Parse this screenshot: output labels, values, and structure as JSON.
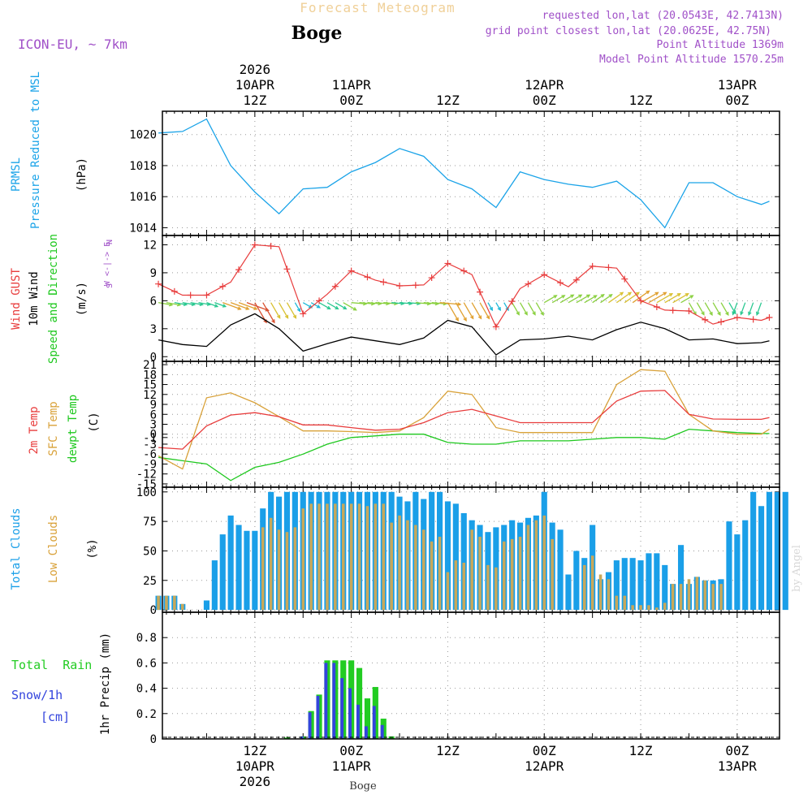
{
  "header": {
    "product": "Forecast Meteogram",
    "station": "Boge",
    "model": "ICON-EU, ~ 7km",
    "requested": "requested lon,lat (20.0543E, 42.7413N)",
    "gridpoint": "grid point closest lon,lat (20.0625E, 42.75N)",
    "altitude": "Point Altitude 1369m",
    "model_altitude": "Model Point Altitude 1570.25m",
    "credit": "by Angel",
    "footer_station": "Boge"
  },
  "colors": {
    "prmsl": "#1aa3e8",
    "gust": "#e83c3c",
    "wind": "#000000",
    "temp2m": "#e83c3c",
    "sfc": "#d9a23a",
    "dewpt": "#1ec81e",
    "total_clouds": "#1a9fe8",
    "low_clouds": "#c8a85a",
    "rain": "#22cc22",
    "snow": "#3344dd",
    "purple": "#a050c8"
  },
  "chart_data": [
    {
      "type": "line",
      "id": "prmsl",
      "ylabel_lines": [
        "PRMSL",
        "Pressure Reduced to MSL"
      ],
      "unit": "(hPa)",
      "ylim": [
        1013.5,
        1021.5
      ],
      "yticks": [
        1014,
        1016,
        1018,
        1020
      ],
      "yticklabels": [
        "1014",
        "1016",
        "1018",
        "1020"
      ],
      "x_hours": [
        0,
        3,
        6,
        9,
        12,
        15,
        18,
        21,
        24,
        27,
        30,
        33,
        36,
        39,
        42,
        45,
        48,
        51,
        54,
        57,
        60,
        63,
        66,
        69,
        72,
        75,
        76
      ],
      "series": [
        {
          "name": "PRMSL",
          "values": [
            1020.1,
            1020.2,
            1021.0,
            1018.0,
            1016.3,
            1014.9,
            1016.5,
            1016.6,
            1017.6,
            1018.2,
            1019.1,
            1018.6,
            1017.1,
            1016.5,
            1015.3,
            1017.6,
            1017.1,
            1016.8,
            1016.6,
            1017.0,
            1015.8,
            1014.0,
            1016.9,
            1016.9,
            1016.0,
            1015.5,
            1015.7
          ]
        }
      ]
    },
    {
      "type": "line",
      "id": "wind",
      "ylabel_lines": [
        "Wind GUST",
        "10m Wind",
        "Speed and Direction"
      ],
      "unit": "(m/s)",
      "compass": [
        "N",
        "W <-|-> E",
        "S"
      ],
      "ylim": [
        -0.5,
        13
      ],
      "yticks": [
        0,
        3,
        6,
        9,
        12
      ],
      "yticklabels": [
        "0",
        "3",
        "6",
        "9",
        "12"
      ],
      "x_hours": [
        0,
        3,
        6,
        9,
        12,
        15,
        18,
        21,
        24,
        27,
        30,
        33,
        36,
        39,
        42,
        45,
        48,
        51,
        54,
        57,
        60,
        63,
        66,
        69,
        72,
        75,
        76
      ],
      "series": [
        {
          "name": "Wind GUST",
          "values": [
            7.8,
            6.6,
            6.6,
            8.0,
            12.0,
            11.8,
            4.6,
            6.7,
            9.2,
            8.2,
            7.6,
            7.7,
            10.0,
            8.8,
            3.2,
            7.3,
            8.8,
            7.5,
            9.7,
            9.5,
            6.0,
            5.0,
            4.9,
            3.5,
            4.2,
            3.9,
            4.2
          ]
        },
        {
          "name": "10m Wind",
          "values": [
            1.8,
            1.3,
            1.1,
            3.4,
            4.6,
            3.0,
            0.6,
            1.4,
            2.1,
            1.7,
            1.3,
            2.0,
            3.9,
            3.2,
            0.2,
            1.8,
            1.9,
            2.2,
            1.8,
            2.9,
            3.7,
            3.0,
            1.8,
            1.9,
            1.4,
            1.5,
            1.7
          ]
        }
      ],
      "wind_barbs": {
        "base": 5.8,
        "count": 76,
        "direction_deg_by_6h": [
          100,
          110,
          150,
          120,
          95,
          95,
          150,
          150,
          60,
          55,
          60,
          150,
          200,
          60,
          60
        ]
      }
    },
    {
      "type": "line",
      "id": "temperature",
      "ylabel_lines": [
        "2m Temp",
        "SFC Temp",
        "dewpt Temp"
      ],
      "unit": "(C)",
      "ylim": [
        -16,
        22
      ],
      "yticks": [
        -15,
        -12,
        -9,
        -6,
        -3,
        -1,
        0,
        3,
        6,
        9,
        12,
        15,
        18,
        21
      ],
      "yticklabels": [
        "-15",
        "-12",
        "-9",
        "-6",
        "-3",
        "-1",
        "0",
        "3",
        "6",
        "9",
        "12",
        "15",
        "18",
        "21"
      ],
      "x_hours": [
        0,
        3,
        6,
        9,
        12,
        15,
        18,
        21,
        24,
        27,
        30,
        33,
        36,
        39,
        42,
        45,
        48,
        51,
        54,
        57,
        60,
        63,
        66,
        69,
        72,
        75,
        76
      ],
      "series": [
        {
          "name": "2m Temp",
          "values": [
            -4.0,
            -4.5,
            2.5,
            5.8,
            6.5,
            5.3,
            2.8,
            2.8,
            2.0,
            1.2,
            1.5,
            3.5,
            6.5,
            7.5,
            5.5,
            3.5,
            3.5,
            3.5,
            3.5,
            10.0,
            13.0,
            13.2,
            6.0,
            4.6,
            4.5,
            4.5,
            5.0
          ]
        },
        {
          "name": "SFC Temp",
          "values": [
            -6.5,
            -10.5,
            11.0,
            12.5,
            9.5,
            5.3,
            1.0,
            1.0,
            0.8,
            0.5,
            1.0,
            5.0,
            13.0,
            12.0,
            2.0,
            0.5,
            0.5,
            0.5,
            0.5,
            15.0,
            19.5,
            19.0,
            6.0,
            1.0,
            0.0,
            0.0,
            1.5
          ]
        },
        {
          "name": "dewpt Temp",
          "values": [
            -7.0,
            -8.0,
            -9.0,
            -14.0,
            -10.0,
            -8.5,
            -6.0,
            -3.0,
            -1.0,
            -0.5,
            0.0,
            0.0,
            -2.5,
            -3.0,
            -3.0,
            -2.0,
            -2.0,
            -2.0,
            -1.5,
            -1.0,
            -1.0,
            -1.5,
            1.5,
            1.0,
            0.5,
            0.2,
            0.2
          ]
        }
      ]
    },
    {
      "type": "bar",
      "id": "clouds",
      "ylabel_lines": [
        "Total Clouds",
        "Low Clouds"
      ],
      "unit": "(%)",
      "ylim": [
        -2,
        104
      ],
      "yticks": [
        0,
        25,
        50,
        75,
        100
      ],
      "yticklabels": [
        "0",
        "25",
        "50",
        "75",
        "100"
      ],
      "series": [
        {
          "name": "Total Clouds",
          "values": [
            12,
            12,
            12,
            5,
            0,
            0,
            8,
            42,
            64,
            80,
            72,
            67,
            67,
            86,
            100,
            96,
            100,
            100,
            100,
            100,
            100,
            100,
            100,
            100,
            100,
            100,
            100,
            100,
            100,
            100,
            96,
            92,
            100,
            94,
            100,
            100,
            92,
            90,
            82,
            76,
            72,
            66,
            70,
            72,
            76,
            74,
            78,
            80,
            100,
            74,
            68,
            30,
            50,
            44,
            72,
            26,
            32,
            42,
            44,
            44,
            42,
            48,
            48,
            38,
            22,
            55,
            22,
            28,
            25,
            25,
            26,
            75,
            64,
            76,
            100,
            88,
            100,
            100,
            100
          ]
        },
        {
          "name": "Low Clouds",
          "values": [
            12,
            12,
            12,
            5,
            0,
            0,
            0,
            0,
            0,
            0,
            0,
            0,
            0,
            70,
            78,
            68,
            66,
            70,
            86,
            90,
            90,
            90,
            90,
            90,
            90,
            90,
            88,
            90,
            90,
            74,
            80,
            76,
            72,
            68,
            58,
            62,
            32,
            42,
            40,
            68,
            62,
            38,
            36,
            58,
            60,
            62,
            72,
            76,
            80,
            60,
            0,
            0,
            0,
            38,
            46,
            30,
            26,
            12,
            12,
            4,
            4,
            4,
            2,
            6,
            22,
            22,
            26,
            28,
            25,
            22,
            22,
            0,
            0,
            0,
            0,
            0,
            0,
            0,
            0
          ]
        }
      ]
    },
    {
      "type": "bar",
      "id": "precip",
      "ylabel_lines": [
        "1hr Precip (mm)"
      ],
      "legend": {
        "total_rain": "Total  Rain",
        "snow": "Snow/1h",
        "snow_unit": "[cm]"
      },
      "ylim": [
        0,
        1.0
      ],
      "yticks": [
        0,
        0.2,
        0.4,
        0.6,
        0.8
      ],
      "yticklabels": [
        "0",
        "0.2",
        "0.4",
        "0.6",
        "0.8"
      ],
      "first_hour": 16,
      "series": [
        {
          "name": "Total Rain",
          "values": [
            0.01,
            0.0,
            0.02,
            0.22,
            0.35,
            0.62,
            0.62,
            0.62,
            0.62,
            0.56,
            0.32,
            0.41,
            0.16,
            0.02
          ]
        },
        {
          "name": "Snow/1h",
          "values": [
            0.0,
            0.0,
            0.02,
            0.21,
            0.34,
            0.6,
            0.6,
            0.48,
            0.4,
            0.27,
            0.1,
            0.26,
            0.11,
            0.0
          ]
        }
      ]
    }
  ],
  "time_axis": {
    "top": [
      {
        "hour": 12,
        "lines": [
          "2026",
          "10APR",
          "12Z"
        ]
      },
      {
        "hour": 24,
        "lines": [
          "11APR",
          "00Z"
        ]
      },
      {
        "hour": 36,
        "lines": [
          "12Z"
        ]
      },
      {
        "hour": 48,
        "lines": [
          "12APR",
          "00Z"
        ]
      },
      {
        "hour": 60,
        "lines": [
          "12Z"
        ]
      },
      {
        "hour": 72,
        "lines": [
          "13APR",
          "00Z"
        ]
      }
    ],
    "bottom": [
      {
        "hour": 12,
        "lines": [
          "12Z",
          "10APR",
          "2026"
        ]
      },
      {
        "hour": 24,
        "lines": [
          "00Z",
          "11APR"
        ]
      },
      {
        "hour": 36,
        "lines": [
          "12Z"
        ]
      },
      {
        "hour": 48,
        "lines": [
          "00Z",
          "12APR"
        ]
      },
      {
        "hour": 60,
        "lines": [
          "12Z"
        ]
      },
      {
        "hour": 72,
        "lines": [
          "00Z",
          "13APR"
        ]
      }
    ]
  }
}
